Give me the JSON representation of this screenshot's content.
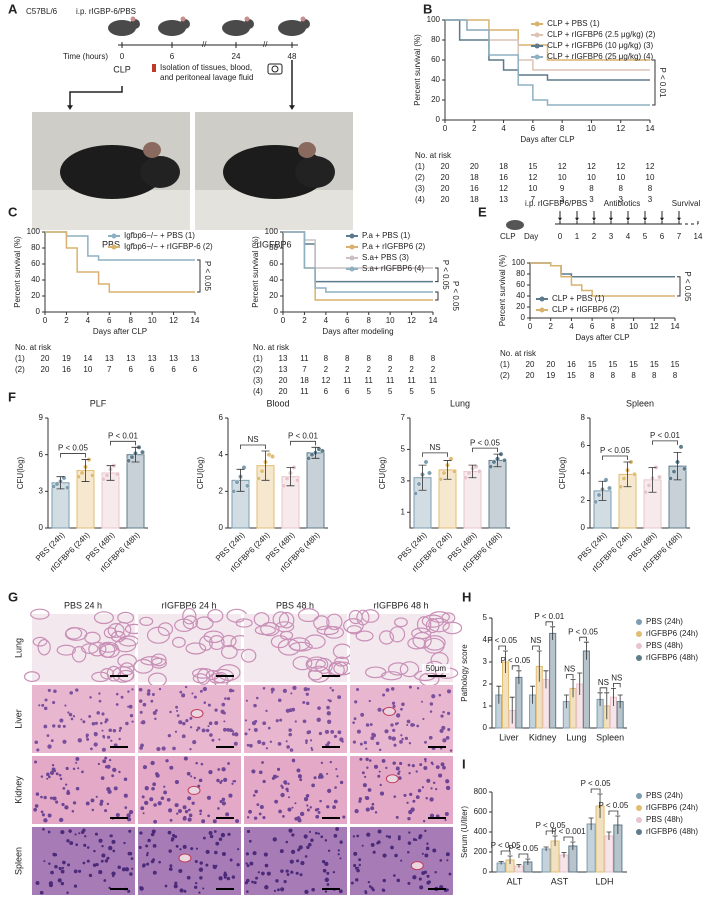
{
  "figure": {
    "panel_labels": [
      "A",
      "B",
      "C",
      "D",
      "E",
      "F",
      "G",
      "H",
      "I"
    ],
    "panel_a": {
      "strain": "C57BL/6",
      "injection": "i.p. rIGBP-6/PBS",
      "time_label": "Time (hours)",
      "time_points": [
        "0",
        "6",
        "24",
        "48"
      ],
      "event": "CLP",
      "sampling": [
        "Isolation of tissues, blood,",
        "and peritoneal lavage fluid"
      ],
      "groups": [
        "PBS",
        "rIGFBP6"
      ]
    },
    "panel_e": {
      "injection": "i.p. rIGFBP6/PBS",
      "treatment": "Antibiotics",
      "endpoint": "Survival",
      "event": "CLP",
      "day_label": "Day",
      "days": [
        "0",
        "1",
        "2",
        "3",
        "4",
        "5",
        "6",
        "7",
        "14"
      ]
    },
    "panel_g": {
      "columns": [
        "PBS 24 h",
        "rIGFBP6 24 h",
        "PBS 48 h",
        "rIGFBP6 48 h"
      ],
      "rows": [
        "Lung",
        "Liver",
        "Kidney",
        "Spleen"
      ],
      "scale_bar": "50μm"
    }
  },
  "chart_data": [
    {
      "type": "step",
      "ylabel": "Percent survival (%)",
      "xlabel": "Days after CLP",
      "xlim": [
        0,
        14
      ],
      "xticks": [
        0,
        2,
        4,
        6,
        8,
        10,
        12,
        14
      ],
      "ylim": [
        0,
        100
      ],
      "yticks": [
        0,
        20,
        40,
        60,
        80,
        100
      ],
      "legend": "top-right",
      "series": [
        {
          "name": "CLP + PBS (1)",
          "color": "#d8b26e",
          "x": [
            0,
            3,
            5,
            7,
            14
          ],
          "values": [
            100,
            90,
            75,
            60,
            60
          ]
        },
        {
          "name": "CLP + rIGFBP6 (2.5 μg/kg) (2)",
          "color": "#dcc3b6",
          "x": [
            0,
            1.5,
            3,
            5,
            6,
            14
          ],
          "values": [
            100,
            90,
            80,
            60,
            50,
            50
          ]
        },
        {
          "name": "CLP + rIGFBP6 (10 μg/kg) (3)",
          "color": "#5d7a8c",
          "x": [
            0,
            1,
            3,
            4,
            5,
            7,
            14
          ],
          "values": [
            100,
            80,
            60,
            50,
            45,
            40,
            40
          ]
        },
        {
          "name": "CLP + rIGFBP6 (25 μg/kg) (4)",
          "color": "#8fb0c2",
          "x": [
            0,
            1.5,
            3,
            5,
            6,
            7,
            14
          ],
          "values": [
            100,
            90,
            65,
            35,
            20,
            15,
            15
          ]
        }
      ],
      "annotations": [
        "P < 0.01"
      ],
      "risk_table": {
        "title": "No. at risk",
        "rows": [
          [
            "(1)",
            20,
            20,
            18,
            15,
            12,
            12,
            12,
            12
          ],
          [
            "(2)",
            20,
            18,
            16,
            12,
            10,
            10,
            10,
            10
          ],
          [
            "(3)",
            20,
            16,
            12,
            10,
            9,
            8,
            8,
            8
          ],
          [
            "(4)",
            20,
            18,
            13,
            7,
            3,
            3,
            3,
            3
          ]
        ]
      }
    },
    {
      "type": "step",
      "ylabel": "Percent survival (%)",
      "xlabel": "Days after CLP",
      "xlim": [
        0,
        14
      ],
      "xticks": [
        0,
        2,
        4,
        6,
        8,
        10,
        12,
        14
      ],
      "ylim": [
        0,
        100
      ],
      "yticks": [
        0,
        20,
        40,
        60,
        80,
        100
      ],
      "legend": "top-right",
      "series": [
        {
          "name": "Igfbp6−/− + PBS (1)",
          "color": "#8fb0c2",
          "x": [
            0,
            2,
            4,
            5,
            14
          ],
          "values": [
            100,
            95,
            70,
            65,
            65
          ]
        },
        {
          "name": "Igfbp6−/− + rIGFBP-6 (2)",
          "color": "#d8b26e",
          "x": [
            0,
            2,
            3,
            5,
            6,
            14
          ],
          "values": [
            100,
            80,
            50,
            35,
            25,
            25
          ]
        }
      ],
      "annotations": [
        "P < 0.05"
      ],
      "risk_table": {
        "title": "No. at risk",
        "rows": [
          [
            "(1)",
            20,
            19,
            14,
            13,
            13,
            13,
            13,
            13
          ],
          [
            "(2)",
            20,
            16,
            10,
            7,
            6,
            6,
            6,
            6
          ]
        ]
      }
    },
    {
      "type": "step",
      "ylabel": "Percent survival (%)",
      "xlabel": "Days after modeling",
      "xlim": [
        0,
        14
      ],
      "xticks": [
        0,
        2,
        4,
        6,
        8,
        10,
        12,
        14
      ],
      "ylim": [
        0,
        100
      ],
      "yticks": [
        0,
        20,
        40,
        60,
        80,
        100
      ],
      "legend": "top-right",
      "series": [
        {
          "name": "P.a + PBS (1)",
          "color": "#5d7a8c",
          "x": [
            0,
            2,
            3,
            14
          ],
          "values": [
            100,
            85,
            38,
            38
          ]
        },
        {
          "name": "P.a + rIGFBP6 (2)",
          "color": "#d8b26e",
          "x": [
            0,
            2,
            3,
            14
          ],
          "values": [
            100,
            55,
            15,
            15
          ]
        },
        {
          "name": "S.a+ PBS (3)",
          "color": "#c9c0c4",
          "x": [
            0,
            2,
            3,
            14
          ],
          "values": [
            100,
            90,
            55,
            55
          ]
        },
        {
          "name": "S.a+ rIGFBP6 (4)",
          "color": "#8fb0c2",
          "x": [
            0,
            2,
            3,
            4,
            14
          ],
          "values": [
            100,
            55,
            30,
            25,
            25
          ]
        }
      ],
      "annotations": [
        "P < 0.05",
        "P < 0.05"
      ],
      "risk_table": {
        "title": "No. at risk",
        "rows": [
          [
            "(1)",
            13,
            11,
            8,
            8,
            8,
            8,
            8,
            8
          ],
          [
            "(2)",
            13,
            7,
            2,
            2,
            2,
            2,
            2,
            2
          ],
          [
            "(3)",
            20,
            18,
            12,
            11,
            11,
            11,
            11,
            11
          ],
          [
            "(4)",
            20,
            11,
            6,
            6,
            5,
            5,
            5,
            5
          ]
        ]
      }
    },
    {
      "type": "step",
      "ylabel": "Percent survival (%)",
      "xlabel": "Days after CLP",
      "xlim": [
        0,
        14
      ],
      "xticks": [
        0,
        2,
        4,
        6,
        8,
        10,
        12,
        14
      ],
      "ylim": [
        0,
        100
      ],
      "yticks": [
        0,
        20,
        40,
        60,
        80,
        100
      ],
      "legend": "bottom-left",
      "series": [
        {
          "name": "CLP + PBS (1)",
          "color": "#5d7a8c",
          "x": [
            0,
            2,
            3,
            4,
            14
          ],
          "values": [
            100,
            95,
            80,
            75,
            75
          ]
        },
        {
          "name": "CLP + rIGFBP6 (2)",
          "color": "#d8b26e",
          "x": [
            0,
            2,
            3,
            4,
            5,
            6,
            14
          ],
          "values": [
            100,
            95,
            75,
            60,
            50,
            40,
            40
          ]
        }
      ],
      "annotations": [
        "P < 0.05"
      ],
      "risk_table": {
        "title": "No. at risk",
        "rows": [
          [
            "(1)",
            20,
            20,
            16,
            15,
            15,
            15,
            15,
            15
          ],
          [
            "(2)",
            20,
            19,
            15,
            8,
            8,
            8,
            8,
            8
          ]
        ]
      }
    },
    {
      "type": "bar",
      "title": "PLF",
      "ylabel": "CFU(log)",
      "categories": [
        "PBS (24h)",
        "rIGFBP6 (24h)",
        "PBS (48h)",
        "rIGFBP6 (48h)"
      ],
      "colors": [
        "#7d9db0",
        "#e1bd73",
        "#e8c4cc",
        "#5f7c8c"
      ],
      "ylim": [
        0,
        9
      ],
      "yticks": [
        0,
        3,
        6,
        9
      ],
      "values": [
        3.7,
        4.7,
        4.5,
        6.0
      ],
      "errors": [
        0.5,
        0.9,
        0.6,
        0.6
      ],
      "points": [
        [
          3.4,
          3.6,
          3.8,
          4.1,
          3.3
        ],
        [
          4.2,
          4.5,
          5.0,
          5.6,
          4.3
        ],
        [
          4.0,
          4.3,
          4.8,
          5.1,
          4.4
        ],
        [
          5.5,
          5.8,
          6.1,
          6.6,
          6.2
        ]
      ],
      "comparisons": [
        "P < 0.05",
        "P < 0.01"
      ]
    },
    {
      "type": "bar",
      "title": "Blood",
      "ylabel": "CFU(log)",
      "categories": [
        "PBS (24h)",
        "rIGFBP6 (24h)",
        "PBS (48h)",
        "rIGFBP6 (48h)"
      ],
      "colors": [
        "#7d9db0",
        "#e1bd73",
        "#e8c4cc",
        "#5f7c8c"
      ],
      "ylim": [
        0,
        6
      ],
      "yticks": [
        0,
        2,
        4,
        6
      ],
      "values": [
        2.6,
        3.4,
        2.8,
        4.1
      ],
      "errors": [
        0.6,
        0.8,
        0.5,
        0.3
      ],
      "points": [
        [
          2.0,
          2.5,
          2.8,
          3.3,
          2.3
        ],
        [
          2.7,
          3.1,
          3.6,
          4.0,
          3.9
        ],
        [
          2.3,
          2.7,
          3.0,
          3.3,
          2.6
        ],
        [
          3.8,
          4.0,
          4.1,
          4.3,
          4.2
        ]
      ],
      "comparisons": [
        "NS",
        "P < 0.01"
      ]
    },
    {
      "type": "bar",
      "title": "Lung",
      "ylabel": "CFU(log)",
      "categories": [
        "PBS (24h)",
        "rIGFBP6 (24h)",
        "PBS (48h)",
        "rIGFBP6 (48h)"
      ],
      "colors": [
        "#7d9db0",
        "#e1bd73",
        "#e8c4cc",
        "#5f7c8c"
      ],
      "ylim": [
        0,
        7
      ],
      "yticks": [
        1,
        3,
        5,
        7
      ],
      "values": [
        3.2,
        3.7,
        3.6,
        4.3
      ],
      "errors": [
        0.8,
        0.6,
        0.4,
        0.4
      ],
      "points": [
        [
          2.2,
          2.8,
          3.4,
          4.2,
          3.5
        ],
        [
          3.1,
          3.5,
          4.0,
          4.4,
          3.6
        ],
        [
          3.2,
          3.5,
          3.8,
          3.9,
          3.6
        ],
        [
          3.9,
          4.2,
          4.4,
          4.7,
          4.3
        ]
      ],
      "comparisons": [
        "NS",
        "P < 0.05"
      ]
    },
    {
      "type": "bar",
      "title": "Spleen",
      "ylabel": "CFU(log)",
      "categories": [
        "PBS (24h)",
        "rIGFBP6 (24h)",
        "PBS (48h)",
        "rIGFBP6 (48h)"
      ],
      "colors": [
        "#7d9db0",
        "#e1bd73",
        "#e8c4cc",
        "#5f7c8c"
      ],
      "ylim": [
        0,
        8
      ],
      "yticks": [
        0,
        2,
        4,
        6,
        8
      ],
      "values": [
        2.7,
        3.9,
        3.5,
        4.5
      ],
      "errors": [
        0.7,
        0.9,
        0.9,
        1.0
      ],
      "points": [
        [
          1.9,
          2.4,
          2.8,
          3.5,
          2.9
        ],
        [
          3.0,
          3.6,
          4.2,
          4.8,
          3.9
        ],
        [
          2.6,
          3.1,
          3.6,
          4.4,
          3.7
        ],
        [
          3.6,
          4.1,
          4.8,
          5.9,
          4.3
        ]
      ],
      "comparisons": [
        "P < 0.05",
        "P < 0.01"
      ]
    },
    {
      "type": "grouped_bar",
      "ylabel": "Pathology score",
      "categories": [
        "Liver",
        "Kidney",
        "Lung",
        "Spleen"
      ],
      "ylim": [
        0,
        5
      ],
      "yticks": [
        0,
        1,
        2,
        3,
        4,
        5
      ],
      "series": [
        {
          "name": "PBS (24h)",
          "color": "#7d9db0",
          "values": [
            1.5,
            1.5,
            1.2,
            1.3
          ],
          "errors": [
            0.4,
            0.4,
            0.3,
            0.3
          ]
        },
        {
          "name": "rIGFBP6 (24h)",
          "color": "#e1bd73",
          "values": [
            3.0,
            2.8,
            1.8,
            1.0
          ],
          "errors": [
            0.5,
            0.7,
            0.4,
            0.6
          ]
        },
        {
          "name": "PBS (48h)",
          "color": "#e8c4cc",
          "values": [
            0.8,
            2.2,
            2.0,
            1.4
          ],
          "errors": [
            0.6,
            0.4,
            0.5,
            0.4
          ]
        },
        {
          "name": "rIGFBP6 (48h)",
          "color": "#5f7c8c",
          "values": [
            2.3,
            4.3,
            3.5,
            1.2
          ],
          "errors": [
            0.3,
            0.3,
            0.4,
            0.3
          ]
        }
      ],
      "comparisons": [
        [
          "P < 0.05",
          "P < 0.05"
        ],
        [
          "NS",
          "P < 0.01"
        ],
        [
          "NS",
          "P < 0.05"
        ],
        [
          "NS",
          "NS"
        ]
      ]
    },
    {
      "type": "grouped_bar",
      "ylabel": "Serum (U/liter)",
      "categories": [
        "ALT",
        "AST",
        "LDH"
      ],
      "ylim": [
        0,
        800
      ],
      "yticks": [
        0,
        200,
        400,
        600,
        800
      ],
      "series": [
        {
          "name": "PBS (24h)",
          "color": "#7d9db0",
          "values": [
            90,
            230,
            480
          ],
          "errors": [
            15,
            20,
            60
          ]
        },
        {
          "name": "rIGFBP6 (24h)",
          "color": "#e1bd73",
          "values": [
            120,
            310,
            660
          ],
          "errors": [
            40,
            50,
            120
          ]
        },
        {
          "name": "PBS (48h)",
          "color": "#e8c4cc",
          "values": [
            60,
            170,
            360
          ],
          "errors": [
            15,
            25,
            40
          ]
        },
        {
          "name": "rIGFBP6 (48h)",
          "color": "#5f7c8c",
          "values": [
            100,
            260,
            470
          ],
          "errors": [
            30,
            40,
            90
          ]
        }
      ],
      "comparisons": [
        [
          "P < 0.05",
          "P < 0.05"
        ],
        [
          "P < 0.05",
          "P < 0.001"
        ],
        [
          "P < 0.05",
          "P < 0.05"
        ]
      ]
    }
  ]
}
